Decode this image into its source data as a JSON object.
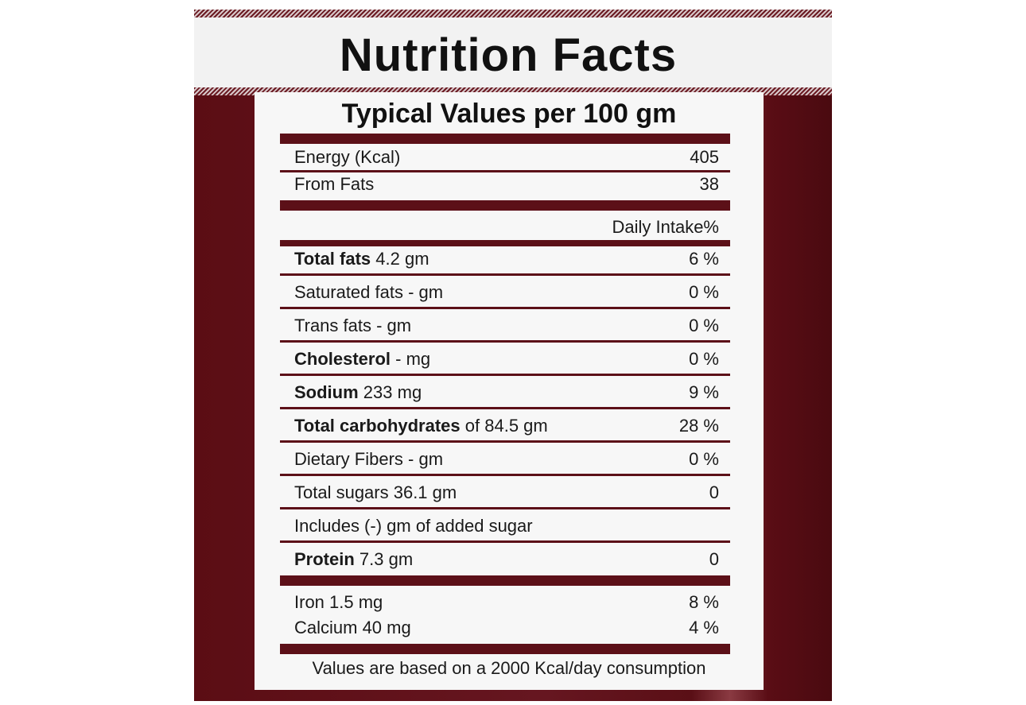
{
  "label": {
    "title": "Nutrition Facts",
    "subtitle": "Typical Values per 100 gm",
    "energy": {
      "label": "Energy (Kcal)",
      "value": "405"
    },
    "from_fats": {
      "label": "From Fats",
      "value": "38"
    },
    "daily_intake_header": "Daily Intake%",
    "rows": [
      {
        "name": "Total fats",
        "detail": "4.2 gm",
        "value": "6 %"
      },
      {
        "name": "",
        "detail": "Saturated fats - gm",
        "value": "0 %"
      },
      {
        "name": "",
        "detail": "Trans fats - gm",
        "value": "0 %"
      },
      {
        "name": "Cholesterol",
        "detail": "- mg",
        "value": "0 %"
      },
      {
        "name": "Sodium",
        "detail": "233 mg",
        "value": "9 %"
      },
      {
        "name": "Total carbohydrates",
        "detail": "of 84.5 gm",
        "value": "28 %"
      },
      {
        "name": "",
        "detail": "Dietary Fibers - gm",
        "value": "0 %"
      },
      {
        "name": "",
        "detail": "Total sugars 36.1 gm",
        "value": "0"
      },
      {
        "name": "",
        "detail": "Includes (-) gm of added sugar",
        "value": ""
      },
      {
        "name": "Protein",
        "detail": "7.3 gm",
        "value": "0"
      }
    ],
    "minerals": [
      {
        "label": "Iron 1.5 mg",
        "value": "8 %"
      },
      {
        "label": "Calcium 40 mg",
        "value": "4 %"
      }
    ],
    "footnote": "Values are based on a 2000 Kcal/day consumption"
  },
  "colors": {
    "package": "#5c1018",
    "panel": "#f7f7f7",
    "text": "#1a1a1a"
  }
}
